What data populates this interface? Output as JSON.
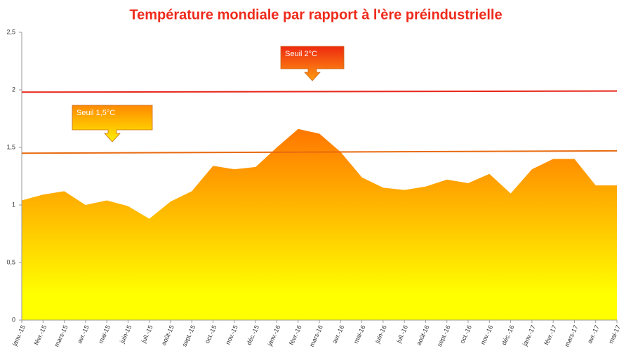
{
  "chart_data": {
    "type": "area",
    "title": "Température mondiale par rapport à l'ère préindustrielle",
    "categories": [
      "janv.-15",
      "févr.-15",
      "mars-15",
      "avr.-15",
      "mai-15",
      "juin-15",
      "juil.-15",
      "août-15",
      "sept.-15",
      "oct.-15",
      "nov.-15",
      "déc.-15",
      "janv.-16",
      "févr.-16",
      "mars-16",
      "avr.-16",
      "mai-16",
      "juin-16",
      "juil.-16",
      "août-16",
      "sept.-16",
      "oct.-16",
      "nov.-16",
      "déc.-16",
      "janv.-17",
      "févr.-17",
      "mars-17",
      "avr.-17",
      "mai-17"
    ],
    "series": [
      {
        "colors": [
          "#ff7a00",
          "#ffff00"
        ],
        "values": [
          1.04,
          1.09,
          1.12,
          1.0,
          1.04,
          0.99,
          0.88,
          1.03,
          1.12,
          1.34,
          1.31,
          1.33,
          1.5,
          1.66,
          1.62,
          1.46,
          1.24,
          1.15,
          1.13,
          1.16,
          1.22,
          1.19,
          1.27,
          1.1,
          1.31,
          1.4,
          1.4,
          1.17,
          1.17
        ]
      }
    ],
    "ylim": [
      0,
      2.5
    ],
    "yticks": [
      0,
      {
        "value": 0.5,
        "label": "0,5"
      },
      1,
      {
        "value": 1.5,
        "label": "1,5"
      },
      2,
      {
        "value": 2.5,
        "label": "2,5"
      }
    ],
    "thresholds": [
      {
        "label": "Seuil 2°C",
        "values": [
          1.98,
          1.99
        ],
        "color": "#e8261a",
        "box_colors": [
          "#ee2a10",
          "#ff9a10"
        ]
      },
      {
        "label": "Seuil 1,5°C",
        "values": [
          1.45,
          1.47
        ],
        "color": "#e86a10",
        "box_colors": [
          "#ff8a00",
          "#ffee00"
        ]
      }
    ]
  }
}
